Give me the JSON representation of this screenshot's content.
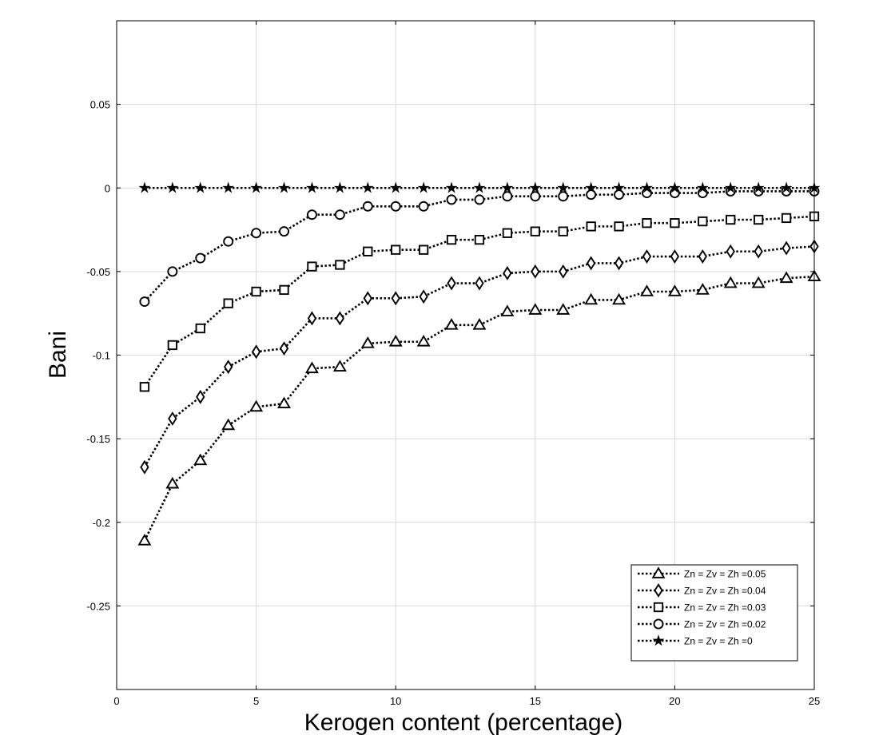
{
  "chart_data": {
    "type": "line",
    "title": "",
    "xlabel": "Kerogen content (percentage)",
    "ylabel": "Bani",
    "xlim": [
      0,
      25
    ],
    "ylim": [
      -0.3,
      0.1
    ],
    "xticks": [
      0,
      5,
      10,
      15,
      20,
      25
    ],
    "xtick_labels": [
      "0",
      "5",
      "10",
      "15",
      "20",
      "25"
    ],
    "yticks": [
      -0.25,
      -0.2,
      -0.15,
      -0.1,
      -0.05,
      0,
      0.05
    ],
    "ytick_labels": [
      "-0.25",
      "-0.2",
      "-0.15",
      "-0.1",
      "-0.05",
      "0",
      "0.05"
    ],
    "grid": true,
    "legend_position": "bottom-right",
    "line_style": "dotted",
    "line_color": "#000000",
    "x": [
      1,
      2,
      3,
      4,
      5,
      6,
      7,
      8,
      9,
      10,
      11,
      12,
      13,
      14,
      15,
      16,
      17,
      18,
      19,
      20,
      21,
      22,
      23,
      24,
      25
    ],
    "series": [
      {
        "name": "Zn = Zv = Zh =0.05",
        "marker": "triangle",
        "values": [
          -0.211,
          -0.177,
          -0.163,
          -0.142,
          -0.131,
          -0.129,
          -0.108,
          -0.107,
          -0.093,
          -0.092,
          -0.092,
          -0.082,
          -0.082,
          -0.074,
          -0.073,
          -0.073,
          -0.067,
          -0.067,
          -0.062,
          -0.062,
          -0.061,
          -0.057,
          -0.057,
          -0.054,
          -0.053
        ]
      },
      {
        "name": "Zn = Zv = Zh =0.04",
        "marker": "diamond",
        "values": [
          -0.167,
          -0.138,
          -0.125,
          -0.107,
          -0.098,
          -0.096,
          -0.078,
          -0.078,
          -0.066,
          -0.066,
          -0.065,
          -0.057,
          -0.057,
          -0.051,
          -0.05,
          -0.05,
          -0.045,
          -0.045,
          -0.041,
          -0.041,
          -0.041,
          -0.038,
          -0.038,
          -0.036,
          -0.035
        ]
      },
      {
        "name": "Zn = Zv = Zh =0.03",
        "marker": "square",
        "values": [
          -0.119,
          -0.094,
          -0.084,
          -0.069,
          -0.062,
          -0.061,
          -0.047,
          -0.046,
          -0.038,
          -0.037,
          -0.037,
          -0.031,
          -0.031,
          -0.027,
          -0.026,
          -0.026,
          -0.023,
          -0.023,
          -0.021,
          -0.021,
          -0.02,
          -0.019,
          -0.019,
          -0.018,
          -0.017
        ]
      },
      {
        "name": "Zn = Zv = Zh =0.02",
        "marker": "circle",
        "values": [
          -0.068,
          -0.05,
          -0.042,
          -0.032,
          -0.027,
          -0.026,
          -0.016,
          -0.016,
          -0.011,
          -0.011,
          -0.011,
          -0.007,
          -0.007,
          -0.005,
          -0.005,
          -0.005,
          -0.004,
          -0.004,
          -0.003,
          -0.003,
          -0.003,
          -0.002,
          -0.002,
          -0.002,
          -0.002
        ]
      },
      {
        "name": "Zn = Zv = Zh =0",
        "marker": "star",
        "values": [
          0,
          0,
          0,
          0,
          0,
          0,
          0,
          0,
          0,
          0,
          0,
          0,
          0,
          0,
          0,
          0,
          0,
          0,
          0,
          0,
          0,
          0,
          0,
          0,
          0
        ]
      }
    ]
  }
}
